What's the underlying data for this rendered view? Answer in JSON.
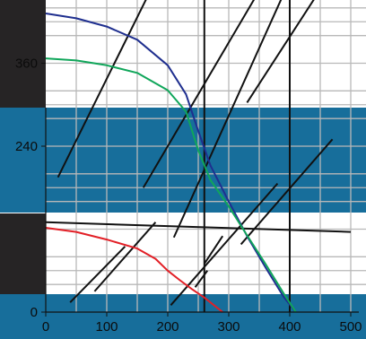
{
  "chart_data": {
    "type": "line",
    "title": "",
    "xlabel": "",
    "ylabel": "",
    "xlim": [
      0,
      500
    ],
    "ylim": [
      0,
      480
    ],
    "x_ticks": [
      "0",
      "100",
      "200",
      "300",
      "400",
      "500"
    ],
    "y_ticks": [
      "0",
      "240",
      "360"
    ],
    "grid": true,
    "legend": "none",
    "band_color": "#176e9b",
    "dark_color": "#262425",
    "series": [
      {
        "color": "#1f2f8f",
        "x": [
          0,
          50,
          100,
          150,
          200,
          230,
          250,
          270,
          300,
          330,
          360,
          390,
          410
        ],
        "y": [
          432,
          425,
          413,
          394,
          357,
          315,
          262,
          212,
          160,
          110,
          65,
          22,
          0
        ]
      },
      {
        "color": "#10a65a",
        "x": [
          0,
          50,
          100,
          150,
          200,
          230,
          250,
          270,
          300,
          330,
          360,
          390,
          410
        ],
        "y": [
          367,
          364,
          357,
          346,
          321,
          290,
          234,
          191,
          153,
          111,
          70,
          27,
          0
        ]
      },
      {
        "color": "#e21f26",
        "x": [
          0,
          50,
          100,
          150,
          180,
          200,
          220,
          240,
          260,
          280,
          290
        ],
        "y": [
          122,
          116,
          105,
          92,
          77,
          60,
          46,
          33,
          21,
          7,
          0
        ]
      }
    ],
    "annotations": {
      "line_color": "#111111",
      "segments_in_data_units": [
        [
          [
            0,
            130
          ],
          [
            500,
            116
          ]
        ],
        [
          [
            0,
            470
          ],
          [
            420,
            470
          ]
        ],
        [
          [
            20,
            195
          ],
          [
            180,
            480
          ]
        ],
        [
          [
            210,
            108
          ],
          [
            400,
            480
          ]
        ],
        [
          [
            330,
            303
          ],
          [
            460,
            480
          ]
        ],
        [
          [
            205,
            10
          ],
          [
            380,
            186
          ]
        ],
        [
          [
            80,
            30
          ],
          [
            180,
            130
          ]
        ],
        [
          [
            245,
            36
          ],
          [
            265,
            60
          ]
        ],
        [
          [
            260,
            70
          ],
          [
            290,
            110
          ]
        ],
        [
          [
            320,
            98
          ],
          [
            470,
            250
          ]
        ],
        [
          [
            40,
            14
          ],
          [
            130,
            95
          ]
        ],
        [
          [
            160,
            180
          ],
          [
            360,
            480
          ]
        ]
      ]
    }
  }
}
